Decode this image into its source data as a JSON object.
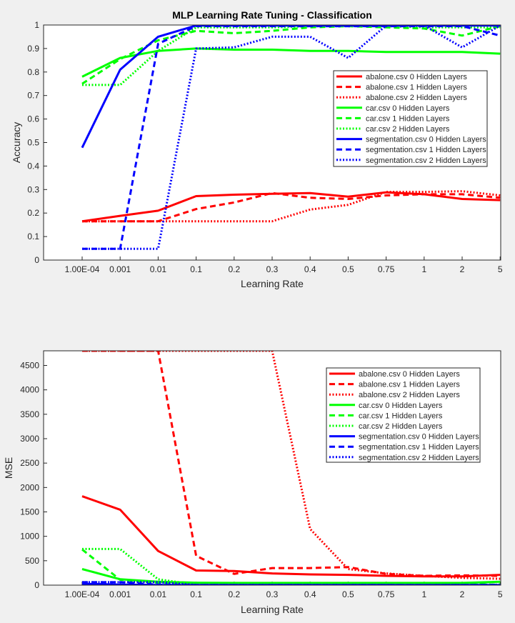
{
  "figure": {
    "background": "#f0f0f0",
    "axes_background": "#ffffff"
  },
  "chart_data": [
    {
      "type": "line",
      "title": "MLP Learning Rate Tuning - Classification",
      "xlabel": "Learning Rate",
      "ylabel": "Accuracy",
      "categories": [
        "1.00E-04",
        "0.001",
        "0.01",
        "0.1",
        "0.2",
        "0.3",
        "0.4",
        "0.5",
        "0.75",
        "1",
        "2",
        "5"
      ],
      "ylim": [
        0,
        1
      ],
      "yticks": [
        "0",
        "0.1",
        "0.2",
        "0.3",
        "0.4",
        "0.5",
        "0.6",
        "0.7",
        "0.8",
        "0.9",
        "1"
      ],
      "grid": false,
      "legend_position": "right",
      "series": [
        {
          "name": "abalone.csv 0 Hidden Layers",
          "color": "#ff0000",
          "style": "solid",
          "values": [
            0.165,
            0.188,
            0.21,
            0.272,
            0.278,
            0.282,
            0.285,
            0.27,
            0.288,
            0.28,
            0.26,
            0.255
          ]
        },
        {
          "name": "abalone.csv 1 Hidden Layers",
          "color": "#ff0000",
          "style": "dashed",
          "values": [
            0.165,
            0.165,
            0.165,
            0.217,
            0.245,
            0.285,
            0.265,
            0.26,
            0.275,
            0.28,
            0.28,
            0.265
          ]
        },
        {
          "name": "abalone.csv 2 Hidden Layers",
          "color": "#ff0000",
          "style": "dotted",
          "values": [
            0.165,
            0.165,
            0.165,
            0.165,
            0.165,
            0.165,
            0.215,
            0.235,
            0.29,
            0.29,
            0.293,
            0.275
          ]
        },
        {
          "name": "car.csv 0 Hidden Layers",
          "color": "#00ff00",
          "style": "solid",
          "values": [
            0.78,
            0.86,
            0.89,
            0.9,
            0.895,
            0.895,
            0.89,
            0.89,
            0.885,
            0.885,
            0.885,
            0.878
          ]
        },
        {
          "name": "car.csv 1 Hidden Layers",
          "color": "#00ff00",
          "style": "dashed",
          "values": [
            0.75,
            0.855,
            0.935,
            0.975,
            0.965,
            0.975,
            0.99,
            0.995,
            0.99,
            0.985,
            0.955,
            0.995
          ]
        },
        {
          "name": "car.csv 2 Hidden Layers",
          "color": "#00ff00",
          "style": "dotted",
          "values": [
            0.745,
            0.745,
            0.89,
            0.99,
            0.99,
            0.99,
            0.995,
            0.995,
            0.995,
            0.99,
            0.99,
            0.99
          ]
        },
        {
          "name": "segmentation.csv 0 Hidden Layers",
          "color": "#0000ff",
          "style": "solid",
          "values": [
            0.478,
            0.81,
            0.95,
            0.998,
            0.998,
            0.998,
            0.998,
            0.998,
            0.998,
            0.998,
            0.998,
            0.998
          ]
        },
        {
          "name": "segmentation.csv 1 Hidden Layers",
          "color": "#0000ff",
          "style": "dashed",
          "values": [
            0.048,
            0.048,
            0.92,
            0.995,
            0.995,
            0.995,
            0.995,
            0.995,
            0.995,
            0.995,
            0.995,
            0.955
          ]
        },
        {
          "name": "segmentation.csv 2 Hidden Layers",
          "color": "#0000ff",
          "style": "dotted",
          "values": [
            0.048,
            0.048,
            0.048,
            0.9,
            0.905,
            0.95,
            0.95,
            0.86,
            0.998,
            0.998,
            0.905,
            0.998
          ]
        }
      ]
    },
    {
      "type": "line",
      "title": "",
      "xlabel": "Learning Rate",
      "ylabel": "MSE",
      "categories": [
        "1.00E-04",
        "0.001",
        "0.01",
        "0.1",
        "0.2",
        "0.3",
        "0.4",
        "0.5",
        "0.75",
        "1",
        "2",
        "5"
      ],
      "ylim": [
        0,
        4800
      ],
      "yticks": [
        "0",
        "500",
        "1000",
        "1500",
        "2000",
        "2500",
        "3000",
        "3500",
        "4000",
        "4500"
      ],
      "grid": false,
      "legend_position": "top-right",
      "series": [
        {
          "name": "abalone.csv 0 Hidden Layers",
          "color": "#ff0000",
          "style": "solid",
          "values": [
            1820,
            1545,
            700,
            300,
            290,
            240,
            220,
            210,
            190,
            180,
            180,
            210
          ]
        },
        {
          "name": "abalone.csv 1 Hidden Layers",
          "color": "#ff0000",
          "style": "dashed",
          "values": [
            4800,
            4800,
            4800,
            600,
            230,
            350,
            350,
            370,
            230,
            190,
            200,
            190
          ]
        },
        {
          "name": "abalone.csv 2 Hidden Layers",
          "color": "#ff0000",
          "style": "dotted",
          "values": [
            4800,
            4800,
            4800,
            4800,
            4800,
            4800,
            1150,
            330,
            240,
            190,
            150,
            130
          ]
        },
        {
          "name": "car.csv 0 Hidden Layers",
          "color": "#00ff00",
          "style": "solid",
          "values": [
            330,
            120,
            70,
            50,
            45,
            45,
            45,
            45,
            45,
            45,
            45,
            70
          ]
        },
        {
          "name": "car.csv 1 Hidden Layers",
          "color": "#00ff00",
          "style": "dashed",
          "values": [
            730,
            110,
            50,
            20,
            25,
            20,
            15,
            10,
            10,
            10,
            20,
            10
          ]
        },
        {
          "name": "car.csv 2 Hidden Layers",
          "color": "#00ff00",
          "style": "dotted",
          "values": [
            740,
            740,
            120,
            10,
            10,
            10,
            10,
            10,
            10,
            10,
            10,
            10
          ]
        },
        {
          "name": "segmentation.csv 0 Hidden Layers",
          "color": "#0000ff",
          "style": "solid",
          "values": [
            30,
            10,
            5,
            2,
            2,
            2,
            2,
            2,
            2,
            2,
            2,
            2
          ]
        },
        {
          "name": "segmentation.csv 1 Hidden Layers",
          "color": "#0000ff",
          "style": "dashed",
          "values": [
            60,
            60,
            10,
            2,
            2,
            2,
            2,
            2,
            2,
            2,
            2,
            5
          ]
        },
        {
          "name": "segmentation.csv 2 Hidden Layers",
          "color": "#0000ff",
          "style": "dotted",
          "values": [
            60,
            60,
            60,
            5,
            5,
            5,
            5,
            5,
            3,
            2,
            5,
            2
          ]
        }
      ]
    }
  ]
}
